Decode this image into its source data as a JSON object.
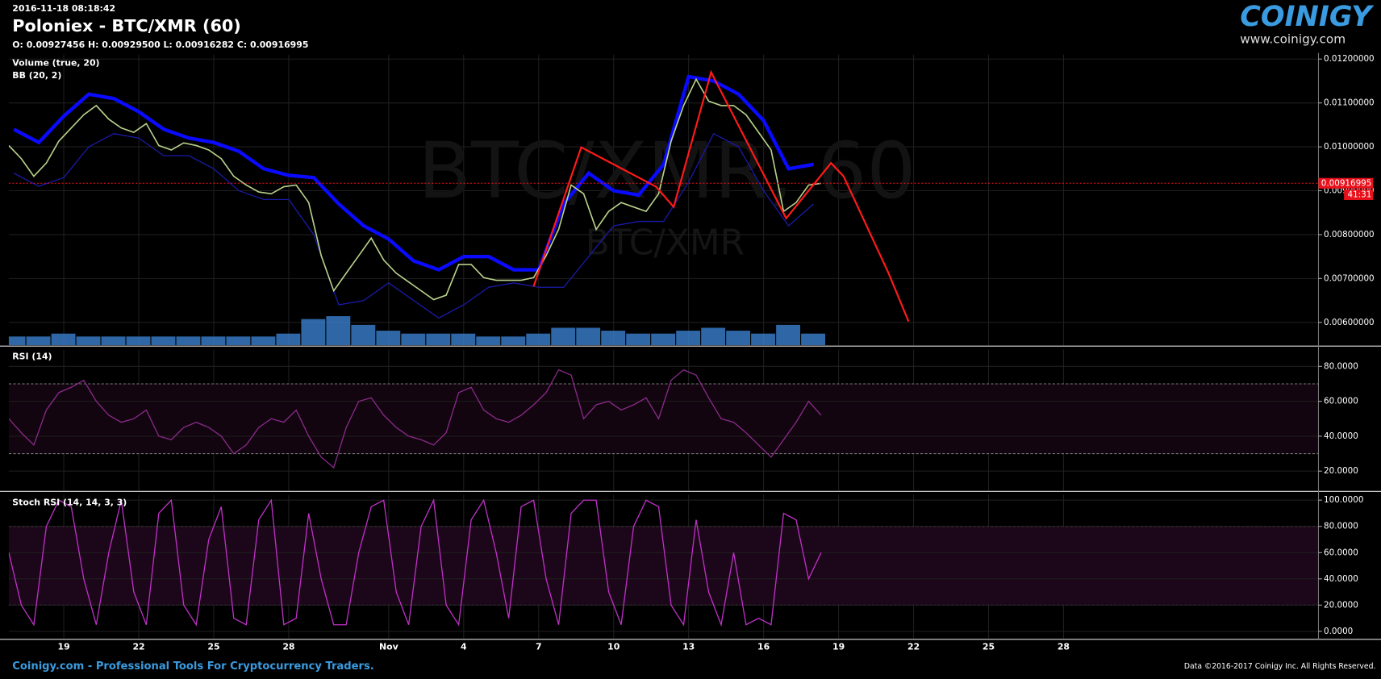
{
  "header": {
    "timestamp": "2016-11-18 08:18:42"
  },
  "logo": {
    "name": "COINIGY",
    "url": "www.coinigy.com"
  },
  "footer": {
    "left": "Coinigy.com - Professional Tools For Cryptocurrency Traders.",
    "right": "Data ©2016-2017 Coinigy Inc. All Rights Reserved."
  },
  "chart_data": [
    {
      "type": "line",
      "title": "Poloniex - BTC/XMR (60)",
      "ohlc": "O: 0.00927456 H: 0.00929500 L: 0.00916282 C: 0.00916995",
      "indicators": [
        "Volume (true, 20)",
        "BB (20, 2)"
      ],
      "watermark": [
        "BTC/XMR, 60",
        "BTC/XMR"
      ],
      "xlim": [
        16.8,
        69.2
      ],
      "xticks": [
        {
          "value": 19,
          "label": "19"
        },
        {
          "value": 22,
          "label": "22"
        },
        {
          "value": 25,
          "label": "25"
        },
        {
          "value": 28,
          "label": "28"
        },
        {
          "value": 32,
          "label": "Nov"
        },
        {
          "value": 35,
          "label": "4"
        },
        {
          "value": 38,
          "label": "7"
        },
        {
          "value": 41,
          "label": "10"
        },
        {
          "value": 44,
          "label": "13"
        },
        {
          "value": 47,
          "label": "16"
        },
        {
          "value": 50,
          "label": "19"
        },
        {
          "value": 53,
          "label": "22"
        },
        {
          "value": 56,
          "label": "25"
        },
        {
          "value": 59,
          "label": "28"
        }
      ],
      "ylim": [
        0.00548,
        0.0121
      ],
      "yticks": [
        {
          "value": 0.012,
          "label": "0.01200000"
        },
        {
          "value": 0.011,
          "label": "0.01100000"
        },
        {
          "value": 0.01,
          "label": "0.01000000"
        },
        {
          "value": 0.009,
          "label": "0.00900000"
        },
        {
          "value": 0.008,
          "label": "0.00800000"
        },
        {
          "value": 0.007,
          "label": "0.00700000"
        },
        {
          "value": 0.006,
          "label": "0.00600000"
        }
      ],
      "grid": true,
      "x": [
        16.8,
        17.3,
        17.8,
        18.3,
        18.8,
        19.3,
        19.8,
        20.3,
        20.8,
        21.3,
        21.8,
        22.3,
        22.8,
        23.3,
        23.8,
        24.3,
        24.8,
        25.3,
        25.8,
        26.3,
        26.8,
        27.3,
        27.8,
        28.3,
        28.8,
        29.3,
        29.8,
        30.3,
        30.8,
        31.3,
        31.8,
        32.3,
        32.8,
        33.3,
        33.8,
        34.3,
        34.8,
        35.3,
        35.8,
        36.3,
        36.8,
        37.3,
        37.8,
        38.3,
        38.8,
        39.3,
        39.8,
        40.3,
        40.8,
        41.3,
        41.8,
        42.3,
        42.8,
        43.3,
        43.8,
        44.3,
        44.8,
        45.3,
        45.8,
        46.3,
        46.8,
        47.3,
        47.8,
        48.3,
        48.8,
        49.3
      ],
      "series": [
        {
          "color": "#b8d08a",
          "values": [
            0.01003,
            0.00973,
            0.00933,
            0.00963,
            0.01013,
            0.01043,
            0.01073,
            0.01094,
            0.01063,
            0.01043,
            0.01033,
            0.01053,
            0.01003,
            0.00993,
            0.01009,
            0.01003,
            0.00993,
            0.00973,
            0.00933,
            0.00913,
            0.00897,
            0.00893,
            0.00909,
            0.00913,
            0.00873,
            0.00752,
            0.00672,
            0.00712,
            0.00752,
            0.00792,
            0.00742,
            0.00712,
            0.00692,
            0.00672,
            0.00652,
            0.00662,
            0.00732,
            0.00732,
            0.00702,
            0.00696,
            0.00696,
            0.00696,
            0.00702,
            0.00752,
            0.00812,
            0.00913,
            0.00893,
            0.00812,
            0.00853,
            0.00873,
            0.00863,
            0.00853,
            0.00893,
            0.01013,
            0.01094,
            0.01154,
            0.01104,
            0.01094,
            0.01094,
            0.01073,
            0.01033,
            0.00993,
            0.00853,
            0.00873,
            0.00913,
            0.00917
          ]
        }
      ],
      "bands_x": [
        17,
        18,
        19,
        20,
        21,
        22,
        23,
        24,
        25,
        26,
        27,
        28,
        29,
        30,
        31,
        32,
        33,
        34,
        35,
        36,
        37,
        38,
        39,
        40,
        41,
        42,
        43,
        44,
        45,
        46,
        47,
        48,
        49
      ],
      "bands": [
        {
          "color": "#0a0aff",
          "values": [
            0.0104,
            0.0101,
            0.0107,
            0.0112,
            0.0111,
            0.0108,
            0.0104,
            0.0102,
            0.0101,
            0.0099,
            0.0095,
            0.00935,
            0.0093,
            0.0087,
            0.0082,
            0.0079,
            0.0074,
            0.0072,
            0.0075,
            0.0075,
            0.0072,
            0.0072,
            0.0087,
            0.0094,
            0.009,
            0.0089,
            0.0096,
            0.0116,
            0.0115,
            0.0112,
            0.0106,
            0.0095,
            0.0096
          ]
        },
        {
          "color": "#1a1aa8",
          "values": [
            0.0094,
            0.0091,
            0.0093,
            0.01,
            0.0103,
            0.0102,
            0.0098,
            0.0098,
            0.0095,
            0.009,
            0.0088,
            0.0088,
            0.008,
            0.0064,
            0.0065,
            0.0069,
            0.0065,
            0.0061,
            0.0064,
            0.0068,
            0.0069,
            0.0068,
            0.0068,
            0.0075,
            0.0082,
            0.0083,
            0.0083,
            0.0092,
            0.0103,
            0.01,
            0.009,
            0.0082,
            0.0087
          ]
        }
      ],
      "volume": {
        "color": "#3a7fd0",
        "ylim": [
          0,
          100
        ],
        "values": [
          3,
          3,
          4,
          3,
          3,
          3,
          3,
          3,
          3,
          3,
          3,
          4,
          9,
          10,
          7,
          5,
          4,
          4,
          4,
          3,
          3,
          4,
          6,
          6,
          5,
          4,
          4,
          5,
          6,
          5,
          4,
          7,
          4
        ]
      },
      "drawing": {
        "color": "#ff1a1a",
        "x": [
          37.8,
          39.7,
          42.7,
          43.4,
          44.9,
          47.9,
          49.7,
          50.2,
          52.0,
          52.8
        ],
        "y": [
          0.00682,
          0.00999,
          0.00909,
          0.00863,
          0.0117,
          0.00837,
          0.00963,
          0.00933,
          0.00712,
          0.00602
        ]
      },
      "last": {
        "value": 0.00916995,
        "countdown": "41:31",
        "color": "#e8101a"
      }
    },
    {
      "type": "line",
      "title": "RSI (14)",
      "ylim": [
        8.9,
        89.6
      ],
      "yticks": [
        {
          "value": 80,
          "label": "80.0000"
        },
        {
          "value": 60,
          "label": "60.0000"
        },
        {
          "value": 40,
          "label": "40.0000"
        },
        {
          "value": 20,
          "label": "20.0000"
        }
      ],
      "bands": [
        30,
        70
      ],
      "band_fill": "#12050f",
      "color": "#8a2a8a",
      "values": [
        50,
        42,
        35,
        55,
        65,
        68,
        72,
        60,
        52,
        48,
        50,
        55,
        40,
        38,
        45,
        48,
        45,
        40,
        30,
        35,
        45,
        50,
        48,
        55,
        40,
        28,
        22,
        45,
        60,
        62,
        52,
        45,
        40,
        38,
        35,
        42,
        65,
        68,
        55,
        50,
        48,
        52,
        58,
        65,
        78,
        75,
        50,
        58,
        60,
        55,
        58,
        62,
        50,
        72,
        78,
        75,
        62,
        50,
        48,
        42,
        35,
        28,
        38,
        48,
        60,
        52
      ]
    },
    {
      "type": "line",
      "title": "Stoch RSI (14, 14, 3, 3)",
      "ylim": [
        -5.4,
        104
      ],
      "yticks": [
        {
          "value": 100,
          "label": "100.0000"
        },
        {
          "value": 80,
          "label": "80.0000"
        },
        {
          "value": 60,
          "label": "60.0000"
        },
        {
          "value": 40,
          "label": "40.0000"
        },
        {
          "value": 20,
          "label": "20.0000"
        },
        {
          "value": 0,
          "label": "0.0000"
        }
      ],
      "bands": [
        20,
        80
      ],
      "band_fill": "#1c0619",
      "color": "#c030c8",
      "values": [
        60,
        20,
        5,
        80,
        100,
        95,
        40,
        5,
        60,
        100,
        30,
        5,
        90,
        100,
        20,
        5,
        70,
        95,
        10,
        5,
        85,
        100,
        5,
        10,
        90,
        40,
        5,
        5,
        60,
        95,
        100,
        30,
        5,
        80,
        100,
        20,
        5,
        85,
        100,
        60,
        10,
        95,
        100,
        40,
        5,
        90,
        100,
        100,
        30,
        5,
        80,
        100,
        95,
        20,
        5,
        85,
        30,
        5,
        60,
        5,
        10,
        5,
        90,
        85,
        40,
        60
      ]
    }
  ]
}
